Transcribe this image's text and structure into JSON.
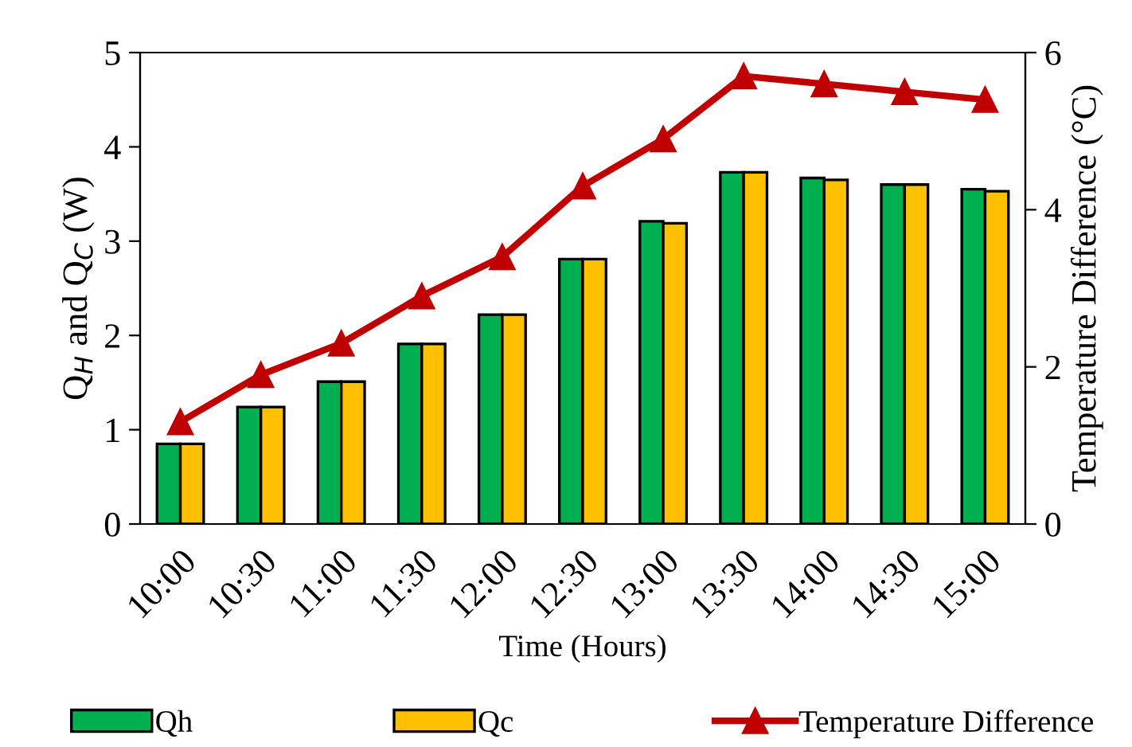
{
  "chart_data": {
    "type": "bar",
    "xlabel": "Time (Hours)",
    "ylabel": "Q$_{H}$ and Q$_{C}$ (W)",
    "y2label": "Temperature Difference (°C)",
    "categories": [
      "10:00",
      "10:30",
      "11:00",
      "11:30",
      "12:00",
      "12:30",
      "13:00",
      "13:30",
      "14:00",
      "14:30",
      "15:00"
    ],
    "series": [
      {
        "name": "Qh",
        "color": "#00b050",
        "values": [
          0.85,
          1.24,
          1.51,
          1.91,
          2.22,
          2.81,
          3.21,
          3.73,
          3.67,
          3.6,
          3.55
        ]
      },
      {
        "name": "Qc",
        "color": "#ffc000",
        "values": [
          0.85,
          1.24,
          1.51,
          1.91,
          2.22,
          2.81,
          3.19,
          3.73,
          3.65,
          3.6,
          3.53
        ]
      },
      {
        "name": "Temperature Difference",
        "type": "line",
        "axis": "y2",
        "color": "#c00000",
        "marker": "triangle",
        "values": [
          1.3,
          1.9,
          2.3,
          2.9,
          3.4,
          4.3,
          4.9,
          5.7,
          5.6,
          5.5,
          5.4
        ]
      }
    ],
    "ylim": [
      0,
      5
    ],
    "yticks": [
      0,
      1,
      2,
      3,
      4,
      5
    ],
    "y2lim": [
      0,
      6
    ],
    "y2ticks": [
      0,
      2,
      4,
      6
    ],
    "grid": false,
    "legend": "bottom"
  }
}
